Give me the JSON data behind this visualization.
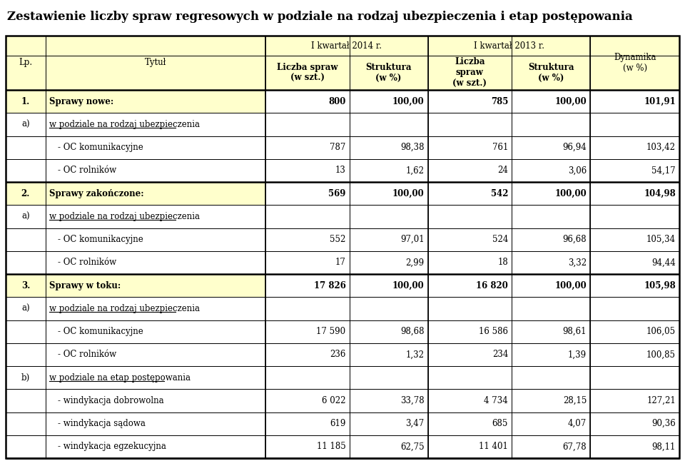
{
  "title": "Zestawienie liczby spraw regresowych w podziale na rodzaj ubezpieczenia i etap postępowania",
  "header_yellow": "#FFFFCC",
  "bg_color": "#FFFFFF",
  "border_color": "#000000",
  "rows": [
    {
      "lp": "1.",
      "title": "Sprawy nowe:",
      "bold": true,
      "underline": false,
      "indent": 0,
      "v1": "800",
      "v2": "100,00",
      "v3": "785",
      "v4": "100,00",
      "v5": "101,91",
      "yellow_bg": true
    },
    {
      "lp": "a)",
      "title": "w podziale na rodzaj ubezpieczenia",
      "bold": false,
      "underline": true,
      "indent": 0,
      "v1": "",
      "v2": "",
      "v3": "",
      "v4": "",
      "v5": "",
      "yellow_bg": false
    },
    {
      "lp": "",
      "title": "- OC komunikacyjne",
      "bold": false,
      "underline": false,
      "indent": 1,
      "v1": "787",
      "v2": "98,38",
      "v3": "761",
      "v4": "96,94",
      "v5": "103,42",
      "yellow_bg": false
    },
    {
      "lp": "",
      "title": "- OC rolników",
      "bold": false,
      "underline": false,
      "indent": 1,
      "v1": "13",
      "v2": "1,62",
      "v3": "24",
      "v4": "3,06",
      "v5": "54,17",
      "yellow_bg": false
    },
    {
      "lp": "2.",
      "title": "Sprawy zakończone:",
      "bold": true,
      "underline": false,
      "indent": 0,
      "v1": "569",
      "v2": "100,00",
      "v3": "542",
      "v4": "100,00",
      "v5": "104,98",
      "yellow_bg": true
    },
    {
      "lp": "a)",
      "title": "w podziale na rodzaj ubezpieczenia",
      "bold": false,
      "underline": true,
      "indent": 0,
      "v1": "",
      "v2": "",
      "v3": "",
      "v4": "",
      "v5": "",
      "yellow_bg": false
    },
    {
      "lp": "",
      "title": "- OC komunikacyjne",
      "bold": false,
      "underline": false,
      "indent": 1,
      "v1": "552",
      "v2": "97,01",
      "v3": "524",
      "v4": "96,68",
      "v5": "105,34",
      "yellow_bg": false
    },
    {
      "lp": "",
      "title": "- OC rolników",
      "bold": false,
      "underline": false,
      "indent": 1,
      "v1": "17",
      "v2": "2,99",
      "v3": "18",
      "v4": "3,32",
      "v5": "94,44",
      "yellow_bg": false
    },
    {
      "lp": "3.",
      "title": "Sprawy w toku:",
      "bold": true,
      "underline": false,
      "indent": 0,
      "v1": "17 826",
      "v2": "100,00",
      "v3": "16 820",
      "v4": "100,00",
      "v5": "105,98",
      "yellow_bg": true
    },
    {
      "lp": "a)",
      "title": "w podziale na rodzaj ubezpieczenia",
      "bold": false,
      "underline": true,
      "indent": 0,
      "v1": "",
      "v2": "",
      "v3": "",
      "v4": "",
      "v5": "",
      "yellow_bg": false
    },
    {
      "lp": "",
      "title": "- OC komunikacyjne",
      "bold": false,
      "underline": false,
      "indent": 1,
      "v1": "17 590",
      "v2": "98,68",
      "v3": "16 586",
      "v4": "98,61",
      "v5": "106,05",
      "yellow_bg": false
    },
    {
      "lp": "",
      "title": "- OC rolników",
      "bold": false,
      "underline": false,
      "indent": 1,
      "v1": "236",
      "v2": "1,32",
      "v3": "234",
      "v4": "1,39",
      "v5": "100,85",
      "yellow_bg": false
    },
    {
      "lp": "b)",
      "title": "w podziale na etap postępowania",
      "bold": false,
      "underline": true,
      "indent": 0,
      "v1": "",
      "v2": "",
      "v3": "",
      "v4": "",
      "v5": "",
      "yellow_bg": false
    },
    {
      "lp": "",
      "title": "- windykacja dobrowolna",
      "bold": false,
      "underline": false,
      "indent": 1,
      "v1": "6 022",
      "v2": "33,78",
      "v3": "4 734",
      "v4": "28,15",
      "v5": "127,21",
      "yellow_bg": false
    },
    {
      "lp": "",
      "title": "- windykacja sądowa",
      "bold": false,
      "underline": false,
      "indent": 1,
      "v1": "619",
      "v2": "3,47",
      "v3": "685",
      "v4": "4,07",
      "v5": "90,36",
      "yellow_bg": false
    },
    {
      "lp": "",
      "title": "- windykacja egzekucyjna",
      "bold": false,
      "underline": false,
      "indent": 1,
      "v1": "11 185",
      "v2": "62,75",
      "v3": "11 401",
      "v4": "67,78",
      "v5": "98,11",
      "yellow_bg": false
    }
  ],
  "thick_borders_after_rows": [
    3,
    7,
    15
  ],
  "col_widths_pts": [
    38,
    210,
    80,
    75,
    80,
    75,
    85
  ],
  "title_fontsize": 12,
  "header_fontsize": 8.5,
  "cell_fontsize": 8.5
}
